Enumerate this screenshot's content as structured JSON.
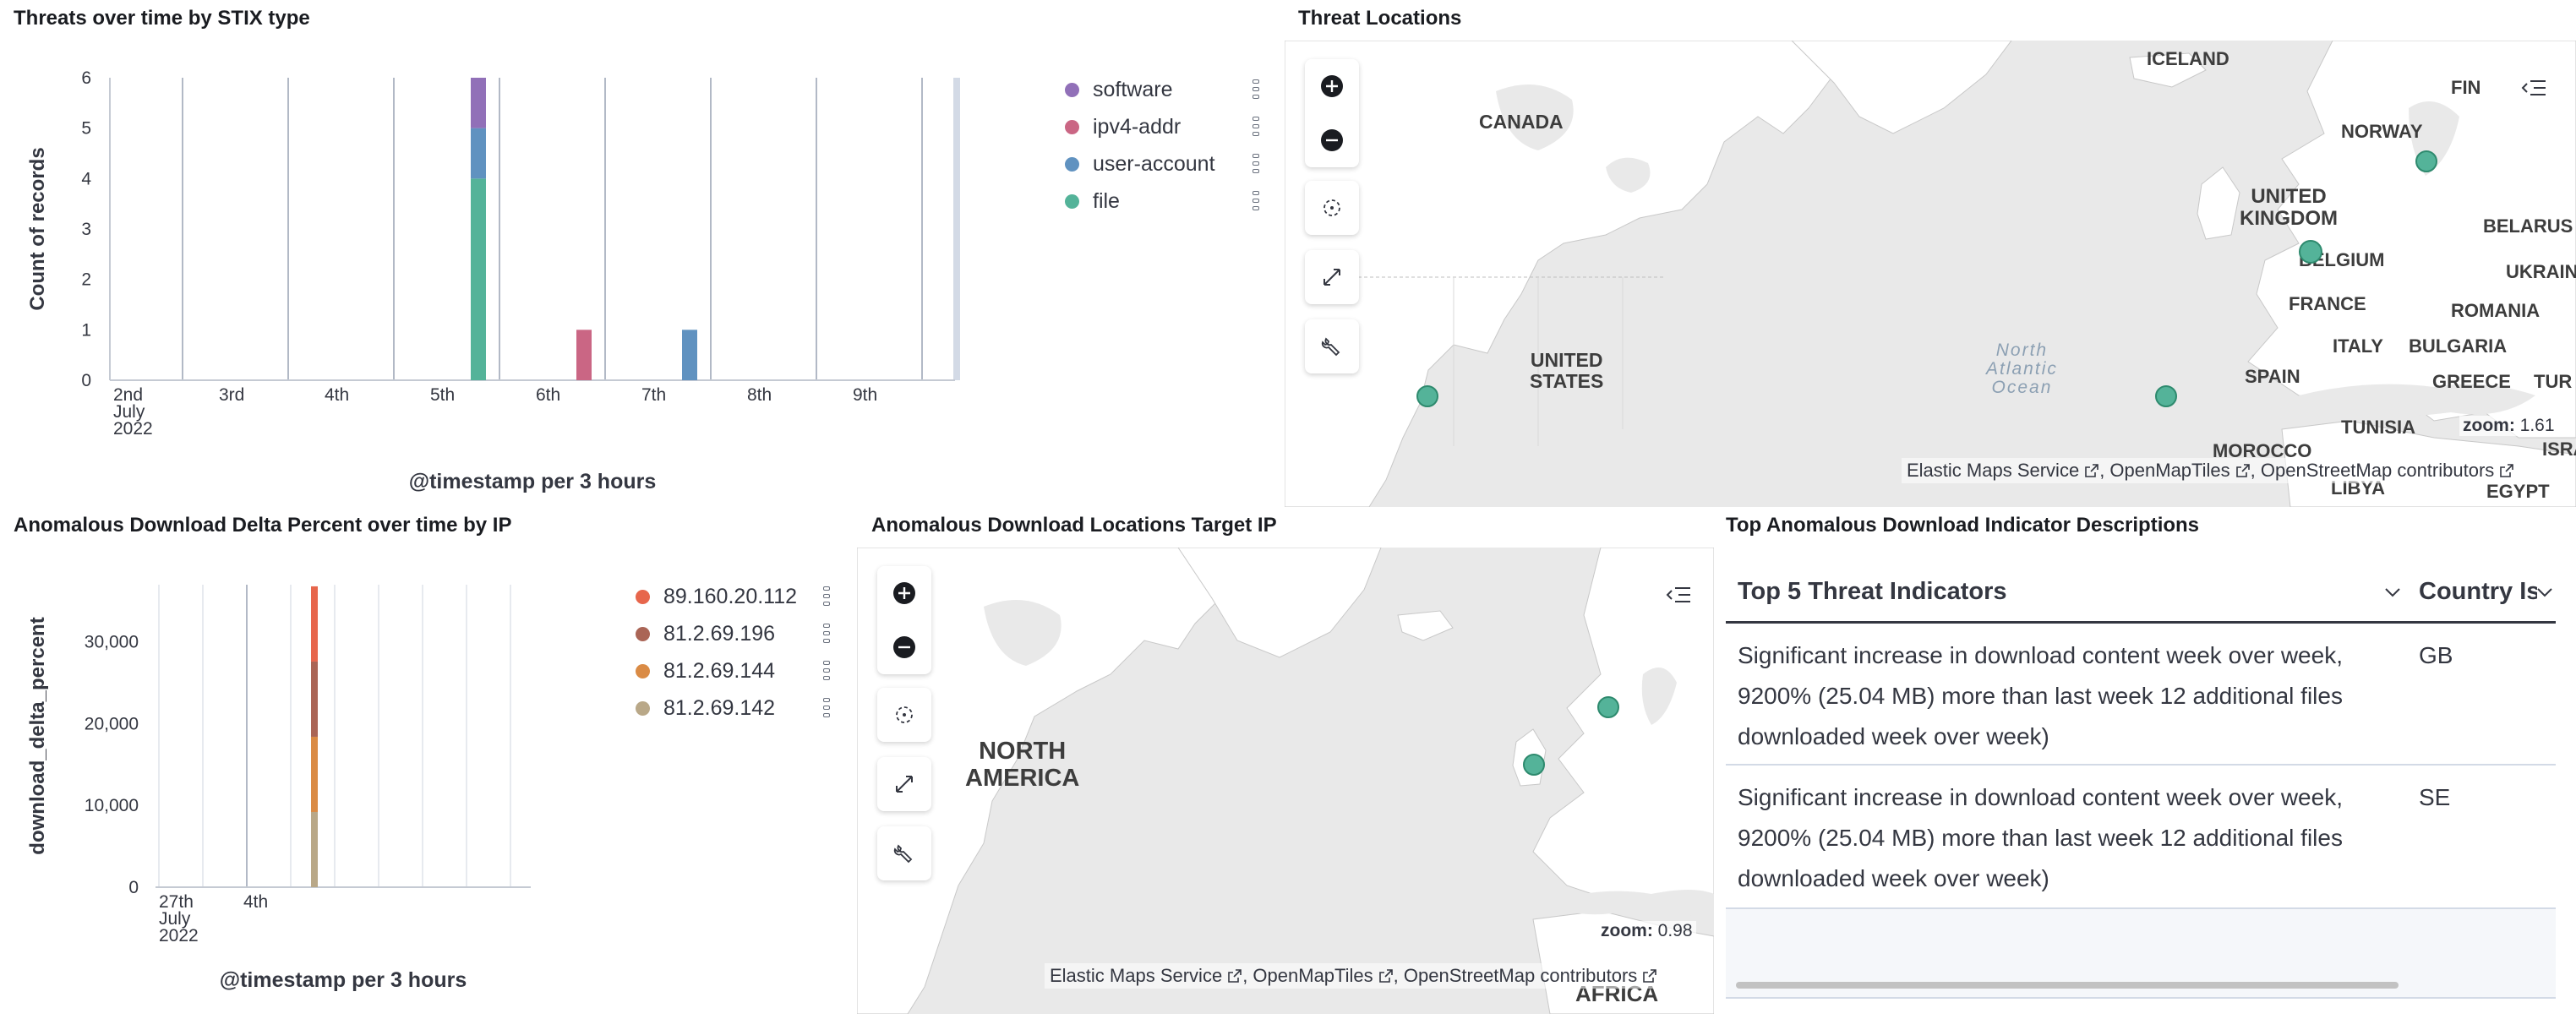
{
  "panels": {
    "threats_chart_title": "Threats over time by STIX type",
    "threat_locations_title": "Threat Locations",
    "anomalous_chart_title": "Anomalous Download Delta Percent over time by IP",
    "anomalous_locations_title": "Anomalous Download Locations Target IP",
    "top_indicators_title": "Top Anomalous Download Indicator Descriptions"
  },
  "chart_data": [
    {
      "type": "bar",
      "stacked": true,
      "title": "Threats over time by STIX type",
      "xlabel": "@timestamp per 3 hours",
      "ylabel": "Count of records",
      "ylim": [
        0,
        6
      ],
      "yticks": [
        "0",
        "1",
        "2",
        "3",
        "4",
        "5",
        "6"
      ],
      "xticks": [
        "2nd",
        "3rd",
        "4th",
        "5th",
        "6th",
        "7th",
        "8th",
        "9th"
      ],
      "xtick_first_sub": [
        "July",
        "2022"
      ],
      "legend_position": "right",
      "grid": true,
      "series": [
        {
          "name": "software",
          "color": "#9170b8",
          "points": [
            {
              "day": "5th",
              "value": 1
            }
          ]
        },
        {
          "name": "ipv4-addr",
          "color": "#ca6684",
          "points": [
            {
              "day": "6th",
              "value": 1
            }
          ]
        },
        {
          "name": "user-account",
          "color": "#6092c0",
          "points": [
            {
              "day": "5th",
              "value": 1
            },
            {
              "day": "7th",
              "value": 1
            }
          ]
        },
        {
          "name": "file",
          "color": "#54b399",
          "points": [
            {
              "day": "5th",
              "value": 4
            }
          ]
        }
      ]
    },
    {
      "type": "bar",
      "stacked": true,
      "title": "Anomalous Download Delta Percent over time by IP",
      "xlabel": "@timestamp per 3 hours",
      "ylabel": "download_delta_percent",
      "ylim": [
        0,
        37000
      ],
      "yticks": [
        "0",
        "10,000",
        "20,000",
        "30,000"
      ],
      "xticks": [
        "27th",
        "4th"
      ],
      "xtick_first_sub": [
        "July",
        "2022"
      ],
      "legend_position": "right",
      "grid": true,
      "series": [
        {
          "name": "89.160.20.112",
          "color": "#e7664c",
          "value": 9200
        },
        {
          "name": "81.2.69.196",
          "color": "#aa6556",
          "value": 9200
        },
        {
          "name": "81.2.69.144",
          "color": "#da8b45",
          "value": 9200
        },
        {
          "name": "81.2.69.142",
          "color": "#b9a888",
          "value": 9200
        }
      ]
    }
  ],
  "map1": {
    "labels": {
      "iceland": "ICELAND",
      "canada": "CANADA",
      "norway": "NORWAY",
      "fin": "FIN",
      "uk": "UNITED\nKINGDOM",
      "belarus": "BELARUS",
      "belgium": "BELGIUM",
      "ukraine": "UKRAIN",
      "france": "FRANCE",
      "romania": "ROMANIA",
      "italy": "ITALY",
      "bulgaria": "BULGARIA",
      "united_states": "UNITED\nSTATES",
      "spain": "SPAIN",
      "greece": "GREECE",
      "turkey": "TUR",
      "tunisia": "TUNISIA",
      "morocco": "MOROCCO",
      "libya": "LIBYA",
      "egypt": "EGYPT",
      "israel": "ISRA",
      "ocean": "North\nAtlantic\nOcean"
    },
    "zoom_label": "zoom:",
    "zoom_value": "1.61",
    "attribution": [
      "Elastic Maps Service",
      "OpenMapTiles",
      "OpenStreetMap contributors"
    ]
  },
  "map2": {
    "labels": {
      "north_america": "NORTH\nAMERICA",
      "africa": "AFRICA"
    },
    "zoom_label": "zoom:",
    "zoom_value": "0.98",
    "attribution": [
      "Elastic Maps Service",
      "OpenMapTiles",
      "OpenStreetMap contributors"
    ]
  },
  "table": {
    "columns": [
      "Top 5 Threat Indicators",
      "Country Is"
    ],
    "rows": [
      {
        "description": [
          "Significant increase in download content week over week,",
          "9200% (25.04 MB) more than last week 12 additional files",
          "downloaded week over week)"
        ],
        "country": "GB"
      },
      {
        "description": [
          "Significant increase in download content week over week,",
          "9200% (25.04 MB) more than last week 12 additional files",
          "downloaded week over week)"
        ],
        "country": "SE"
      }
    ]
  },
  "map_controls": [
    "zoom-in",
    "zoom-out",
    "set-view",
    "fullscreen",
    "tools"
  ],
  "colors": {
    "point": "#54b399",
    "land": "#ffffff",
    "water": "#e9e9e9"
  }
}
